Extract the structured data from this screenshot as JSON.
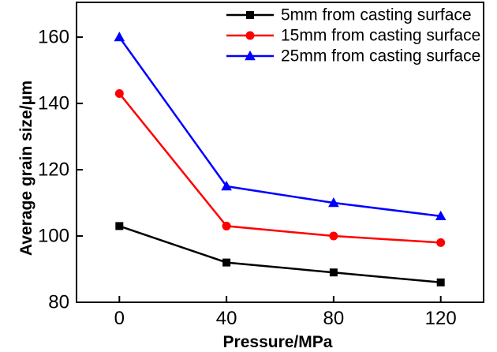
{
  "chart_data": {
    "type": "line",
    "title": "",
    "xlabel": "Pressure/MPa",
    "ylabel": "Average grain size/μm",
    "x": [
      0,
      40,
      80,
      120
    ],
    "x_ticks": [
      0,
      40,
      80,
      120
    ],
    "y_ticks": [
      80,
      100,
      120,
      140,
      160
    ],
    "xlim": [
      -16,
      136
    ],
    "ylim": [
      80,
      170.5
    ],
    "grid": false,
    "legend_position": "top-right-inside",
    "axis_color": "#000000",
    "background_color": "#ffffff",
    "series": [
      {
        "name": "5mm from casting surface",
        "color": "#000000",
        "marker": "square",
        "values": [
          103,
          92,
          89,
          86
        ]
      },
      {
        "name": "15mm from casting surface",
        "color": "#ff0000",
        "marker": "circle",
        "values": [
          143,
          103,
          100,
          98
        ]
      },
      {
        "name": "25mm from casting surface",
        "color": "#0000ff",
        "marker": "triangle",
        "values": [
          160,
          115,
          110,
          106
        ]
      }
    ]
  }
}
